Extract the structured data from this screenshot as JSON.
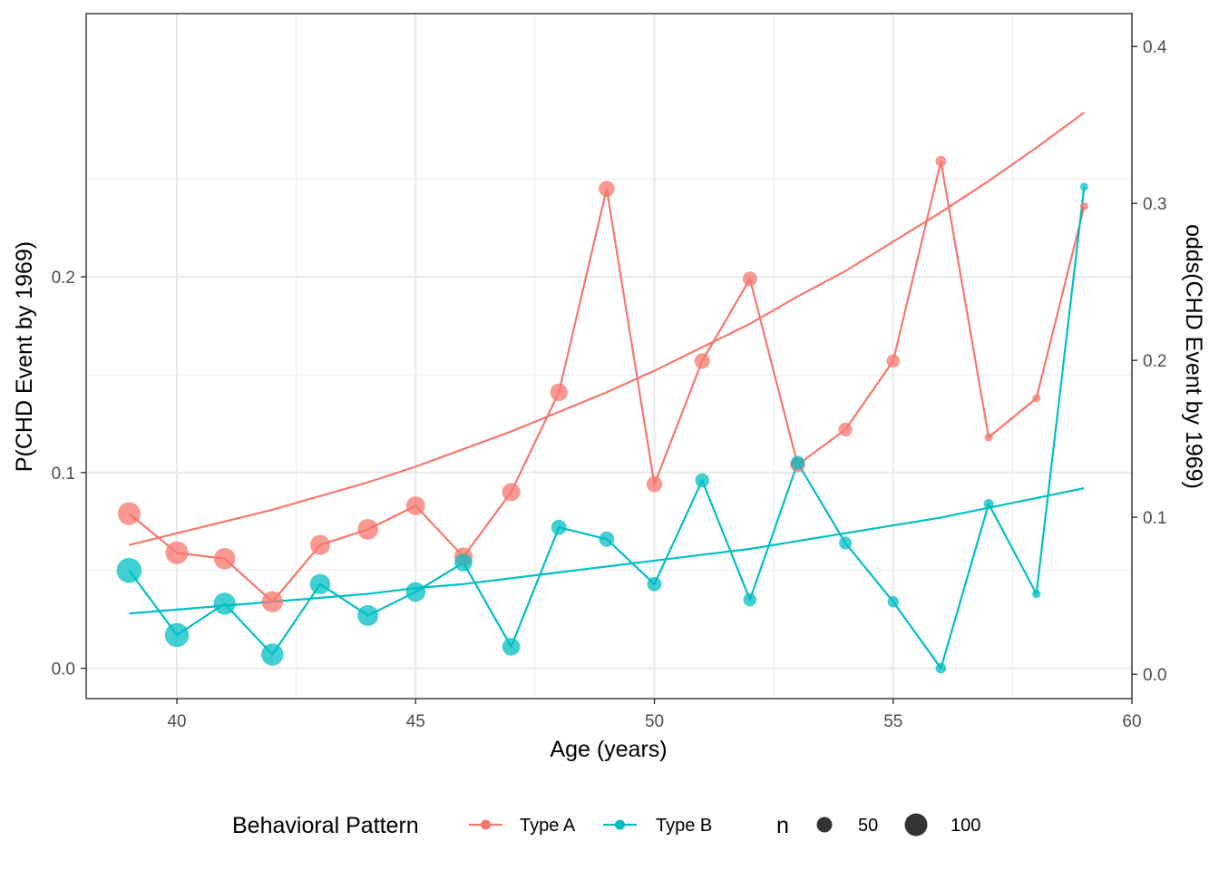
{
  "chart_data": {
    "type": "line",
    "xlabel": "Age (years)",
    "ylabel": "P(CHD Event by 1969)",
    "y2label": "odds(CHD Event by 1969)",
    "xlim": [
      38.1,
      60
    ],
    "ylim": [
      -0.0155,
      0.3345
    ],
    "y2lim": [
      -0.0155,
      0.4209
    ],
    "x_ticks": [
      "40",
      "45",
      "50",
      "55",
      "60"
    ],
    "x_tick_values": [
      40,
      45,
      50,
      55,
      60
    ],
    "y_ticks": [
      "0.0",
      "0.1",
      "0.2"
    ],
    "y_tick_values": [
      0.0,
      0.1,
      0.2
    ],
    "y2_ticks": [
      "0.0",
      "0.1",
      "0.2",
      "0.3",
      "0.4"
    ],
    "y2_tick_values": [
      0.0,
      0.1,
      0.2,
      0.3,
      0.4
    ],
    "grid": true,
    "legend_position": "bottom",
    "legend": {
      "title": "Behavioral Pattern",
      "size_title": "n",
      "size_labels": [
        "50",
        "100"
      ],
      "size_values": [
        50,
        100
      ]
    },
    "x": [
      39,
      40,
      41,
      42,
      43,
      44,
      45,
      46,
      47,
      48,
      49,
      50,
      51,
      52,
      53,
      54,
      55,
      56,
      57,
      58,
      59
    ],
    "series": [
      {
        "name": "Type A",
        "color": "#F8766D",
        "values": [
          0.079,
          0.059,
          0.056,
          0.034,
          0.063,
          0.071,
          0.083,
          0.057,
          0.09,
          0.141,
          0.245,
          0.094,
          0.157,
          0.199,
          0.104,
          0.122,
          0.157,
          0.259,
          0.118,
          0.138,
          0.236
        ],
        "n": [
          101,
          101,
          90,
          88,
          80,
          85,
          72,
          70,
          67,
          63,
          53,
          53,
          51,
          45,
          48,
          41,
          38,
          27,
          17,
          15,
          17
        ],
        "fit": [
          0.063,
          0.069,
          0.075,
          0.081,
          0.088,
          0.095,
          0.103,
          0.112,
          0.121,
          0.131,
          0.141,
          0.152,
          0.164,
          0.176,
          0.19,
          0.203,
          0.218,
          0.233,
          0.249,
          0.266,
          0.284
        ]
      },
      {
        "name": "Type B",
        "color": "#00BFC4",
        "values": [
          0.05,
          0.017,
          0.033,
          0.007,
          0.043,
          0.027,
          0.039,
          0.054,
          0.011,
          0.072,
          0.066,
          0.043,
          0.096,
          0.035,
          0.105,
          0.064,
          0.034,
          0.0,
          0.084,
          0.038,
          0.246
        ],
        "n": [
          120,
          111,
          95,
          96,
          82,
          86,
          77,
          64,
          64,
          49,
          49,
          44,
          42,
          38,
          42,
          36,
          29,
          26,
          24,
          18,
          15
        ],
        "fit": [
          0.028,
          0.03,
          0.032,
          0.034,
          0.036,
          0.038,
          0.041,
          0.043,
          0.046,
          0.049,
          0.052,
          0.055,
          0.058,
          0.061,
          0.065,
          0.069,
          0.073,
          0.077,
          0.082,
          0.087,
          0.092
        ]
      }
    ]
  }
}
